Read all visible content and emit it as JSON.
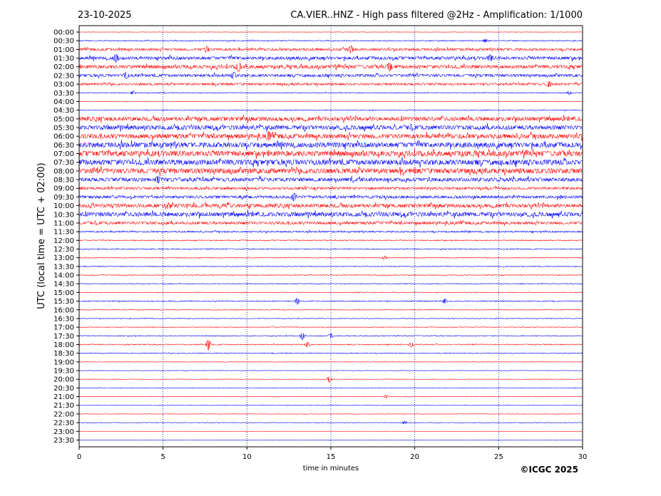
{
  "header": {
    "date": "23-10-2025",
    "title": "CA.VIER..HNZ - High pass filtered @2Hz - Amplification: 1/1000"
  },
  "footer": {
    "copyright": "©ICGC 2025"
  },
  "chart_data": {
    "type": "line",
    "title": "CA.VIER..HNZ - High pass filtered @2Hz - Amplification: 1/1000",
    "xlabel": "time in minutes",
    "ylabel": "UTC (local time = UTC + 02:00)",
    "xlim": [
      0,
      30
    ],
    "x_ticks": [
      0,
      5,
      10,
      15,
      20,
      25,
      30
    ],
    "grid": "vertical dotted at x ticks",
    "colors": {
      "odd_trace": "#ff0000",
      "even_trace": "#0000ff",
      "frame": "#000000",
      "grid": "#0000aa"
    },
    "series": [
      {
        "label": "00:00",
        "color": "#ff0000",
        "amplitude": 0.2
      },
      {
        "label": "00:30",
        "color": "#0000ff",
        "amplitude": 0.6
      },
      {
        "label": "01:00",
        "color": "#ff0000",
        "amplitude": 1.5
      },
      {
        "label": "01:30",
        "color": "#0000ff",
        "amplitude": 2.0
      },
      {
        "label": "02:00",
        "color": "#ff0000",
        "amplitude": 2.2
      },
      {
        "label": "02:30",
        "color": "#0000ff",
        "amplitude": 1.8
      },
      {
        "label": "03:00",
        "color": "#ff0000",
        "amplitude": 1.4
      },
      {
        "label": "03:30",
        "color": "#0000ff",
        "amplitude": 0.5
      },
      {
        "label": "04:00",
        "color": "#ff0000",
        "amplitude": 0.3
      },
      {
        "label": "04:30",
        "color": "#0000ff",
        "amplitude": 0.5
      },
      {
        "label": "05:00",
        "color": "#ff0000",
        "amplitude": 2.6
      },
      {
        "label": "05:30",
        "color": "#0000ff",
        "amplitude": 2.8
      },
      {
        "label": "06:00",
        "color": "#ff0000",
        "amplitude": 3.0
      },
      {
        "label": "06:30",
        "color": "#0000ff",
        "amplitude": 3.3
      },
      {
        "label": "07:00",
        "color": "#ff0000",
        "amplitude": 3.4
      },
      {
        "label": "07:30",
        "color": "#0000ff",
        "amplitude": 3.5
      },
      {
        "label": "08:00",
        "color": "#ff0000",
        "amplitude": 3.3
      },
      {
        "label": "08:30",
        "color": "#0000ff",
        "amplitude": 2.4
      },
      {
        "label": "09:00",
        "color": "#ff0000",
        "amplitude": 1.6
      },
      {
        "label": "09:30",
        "color": "#0000ff",
        "amplitude": 1.8
      },
      {
        "label": "10:00",
        "color": "#ff0000",
        "amplitude": 2.4
      },
      {
        "label": "10:30",
        "color": "#0000ff",
        "amplitude": 2.8
      },
      {
        "label": "11:00",
        "color": "#ff0000",
        "amplitude": 1.8
      },
      {
        "label": "11:30",
        "color": "#0000ff",
        "amplitude": 1.0
      },
      {
        "label": "12:00",
        "color": "#ff0000",
        "amplitude": 0.6
      },
      {
        "label": "12:30",
        "color": "#0000ff",
        "amplitude": 0.6
      },
      {
        "label": "13:00",
        "color": "#ff0000",
        "amplitude": 0.5
      },
      {
        "label": "13:30",
        "color": "#0000ff",
        "amplitude": 0.5
      },
      {
        "label": "14:00",
        "color": "#ff0000",
        "amplitude": 0.5
      },
      {
        "label": "14:30",
        "color": "#0000ff",
        "amplitude": 0.5
      },
      {
        "label": "15:00",
        "color": "#ff0000",
        "amplitude": 0.4
      },
      {
        "label": "15:30",
        "color": "#0000ff",
        "amplitude": 0.6
      },
      {
        "label": "16:00",
        "color": "#ff0000",
        "amplitude": 0.4
      },
      {
        "label": "16:30",
        "color": "#0000ff",
        "amplitude": 0.4
      },
      {
        "label": "17:00",
        "color": "#ff0000",
        "amplitude": 0.4
      },
      {
        "label": "17:30",
        "color": "#0000ff",
        "amplitude": 0.5
      },
      {
        "label": "18:00",
        "color": "#ff0000",
        "amplitude": 0.6
      },
      {
        "label": "18:30",
        "color": "#0000ff",
        "amplitude": 0.5
      },
      {
        "label": "19:00",
        "color": "#ff0000",
        "amplitude": 0.3
      },
      {
        "label": "19:30",
        "color": "#0000ff",
        "amplitude": 0.3
      },
      {
        "label": "20:00",
        "color": "#ff0000",
        "amplitude": 0.3
      },
      {
        "label": "20:30",
        "color": "#0000ff",
        "amplitude": 0.3
      },
      {
        "label": "21:00",
        "color": "#ff0000",
        "amplitude": 0.3
      },
      {
        "label": "21:30",
        "color": "#0000ff",
        "amplitude": 0.3
      },
      {
        "label": "22:00",
        "color": "#ff0000",
        "amplitude": 0.3
      },
      {
        "label": "22:30",
        "color": "#0000ff",
        "amplitude": 0.3
      },
      {
        "label": "23:00",
        "color": "#ff0000",
        "amplitude": 0.1
      },
      {
        "label": "23:30",
        "color": "#0000ff",
        "amplitude": 0.1
      }
    ],
    "events": [
      {
        "row": "02:00",
        "x": 9.5,
        "amp": 5
      },
      {
        "row": "02:00",
        "x": 18.5,
        "amp": 4
      },
      {
        "row": "01:00",
        "x": 16.2,
        "amp": 4
      },
      {
        "row": "01:00",
        "x": 7.6,
        "amp": 3
      },
      {
        "row": "01:30",
        "x": 2.2,
        "amp": 4
      },
      {
        "row": "01:30",
        "x": 24.5,
        "amp": 3
      },
      {
        "row": "02:30",
        "x": 2.8,
        "amp": 3
      },
      {
        "row": "02:30",
        "x": 9.2,
        "amp": 3
      },
      {
        "row": "03:00",
        "x": 28.0,
        "amp": 3
      },
      {
        "row": "03:30",
        "x": 3.2,
        "amp": 2
      },
      {
        "row": "03:30",
        "x": 29.2,
        "amp": 2
      },
      {
        "row": "00:30",
        "x": 24.2,
        "amp": 2
      },
      {
        "row": "06:00",
        "x": 11.3,
        "amp": 4
      },
      {
        "row": "08:30",
        "x": 4.7,
        "amp": 3
      },
      {
        "row": "09:30",
        "x": 12.8,
        "amp": 4
      },
      {
        "row": "15:30",
        "x": 13.0,
        "amp": 4
      },
      {
        "row": "15:30",
        "x": 21.8,
        "amp": 3
      },
      {
        "row": "17:30",
        "x": 13.3,
        "amp": 5
      },
      {
        "row": "17:30",
        "x": 15.0,
        "amp": 3
      },
      {
        "row": "18:00",
        "x": 7.7,
        "amp": 7
      },
      {
        "row": "18:00",
        "x": 13.6,
        "amp": 3
      },
      {
        "row": "18:00",
        "x": 19.8,
        "amp": 3
      },
      {
        "row": "20:00",
        "x": 14.9,
        "amp": 4
      },
      {
        "row": "22:30",
        "x": 19.4,
        "amp": 2
      },
      {
        "row": "13:00",
        "x": 18.2,
        "amp": 2
      },
      {
        "row": "21:00",
        "x": 18.3,
        "amp": 2
      }
    ]
  }
}
